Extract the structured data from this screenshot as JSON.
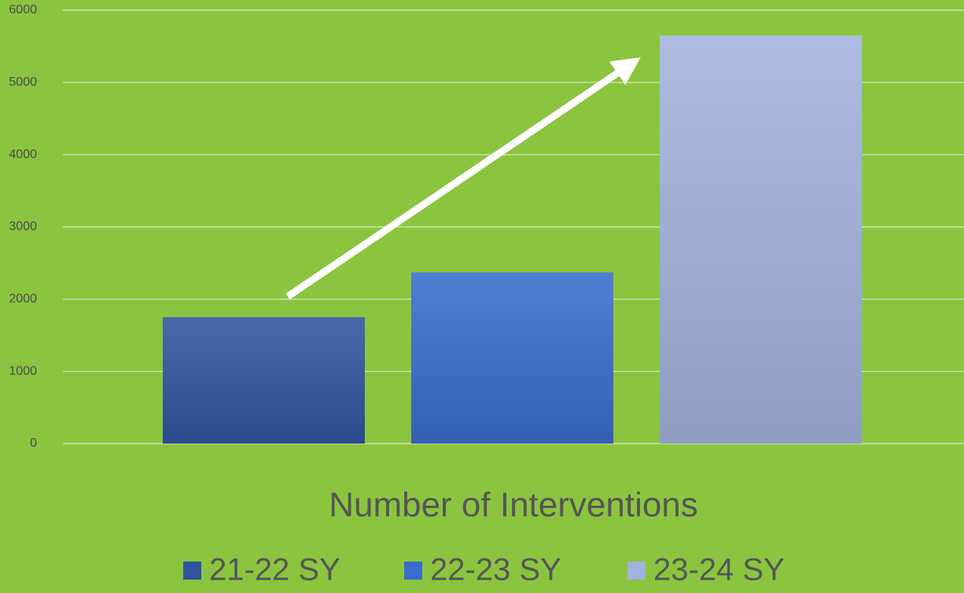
{
  "chart_data": {
    "type": "bar",
    "x_label": "Number of Interventions",
    "categories": [
      null
    ],
    "series": [
      {
        "name": "21-22 SY",
        "color": "#2f559e",
        "values": [
          1750
        ]
      },
      {
        "name": "22-23 SY",
        "color": "#3a6ccc",
        "values": [
          2370
        ]
      },
      {
        "name": "23-24 SY",
        "color": "#a3b3de",
        "values": [
          5650
        ]
      }
    ],
    "ylim": [
      0,
      6000
    ],
    "yticks": [
      0,
      1000,
      2000,
      3000,
      4000,
      5000,
      6000
    ],
    "grid": true,
    "legend": "bottom"
  }
}
